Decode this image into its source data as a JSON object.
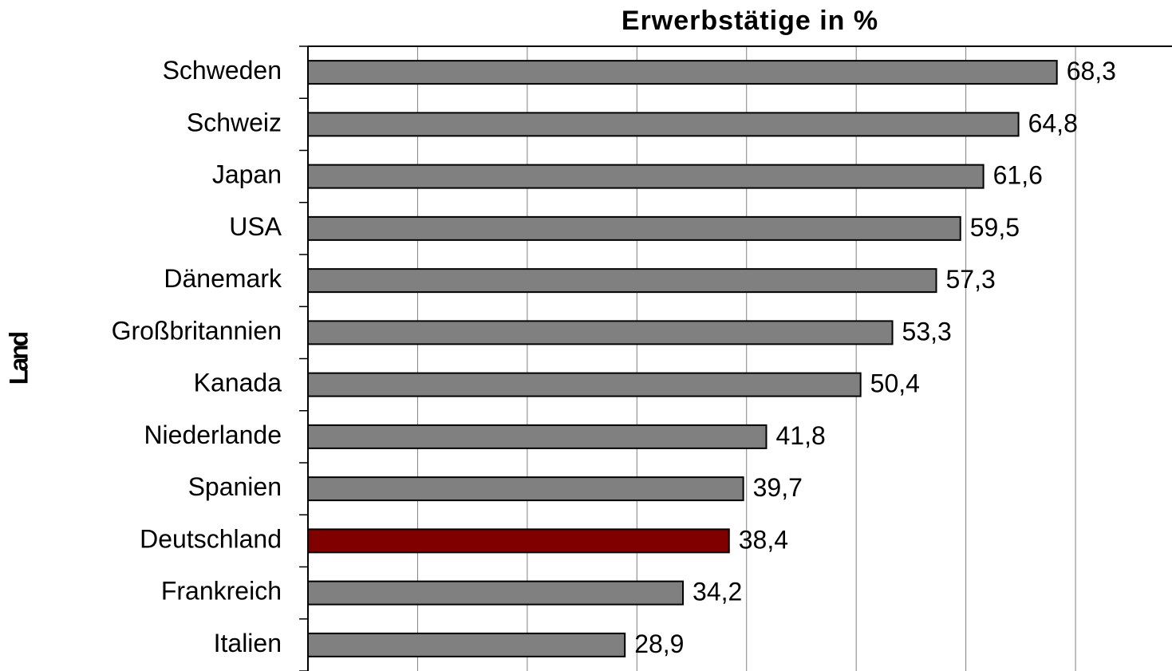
{
  "chart_data": {
    "type": "barh",
    "title": "Erwerbstätige in %",
    "ylabel": "Land",
    "categories": [
      "Schweden",
      "Schweiz",
      "Japan",
      "USA",
      "Dänemark",
      "Großbritannien",
      "Kanada",
      "Niederlande",
      "Spanien",
      "Deutschland",
      "Frankreich",
      "Italien"
    ],
    "values": [
      68.3,
      64.8,
      61.6,
      59.5,
      57.3,
      53.3,
      50.4,
      41.8,
      39.7,
      38.4,
      34.2,
      28.9
    ],
    "value_labels": [
      "68,3",
      "64,8",
      "61,6",
      "59,5",
      "57,3",
      "53,3",
      "50,4",
      "41,8",
      "39,7",
      "38,4",
      "34,2",
      "28,9"
    ],
    "colors": [
      "#808080",
      "#808080",
      "#808080",
      "#808080",
      "#808080",
      "#808080",
      "#808080",
      "#808080",
      "#808080",
      "#800000",
      "#808080",
      "#808080"
    ],
    "xlim": [
      0,
      78.8
    ],
    "xticks": [
      0,
      10,
      20,
      30,
      40,
      50,
      60,
      70
    ],
    "grid": true
  }
}
